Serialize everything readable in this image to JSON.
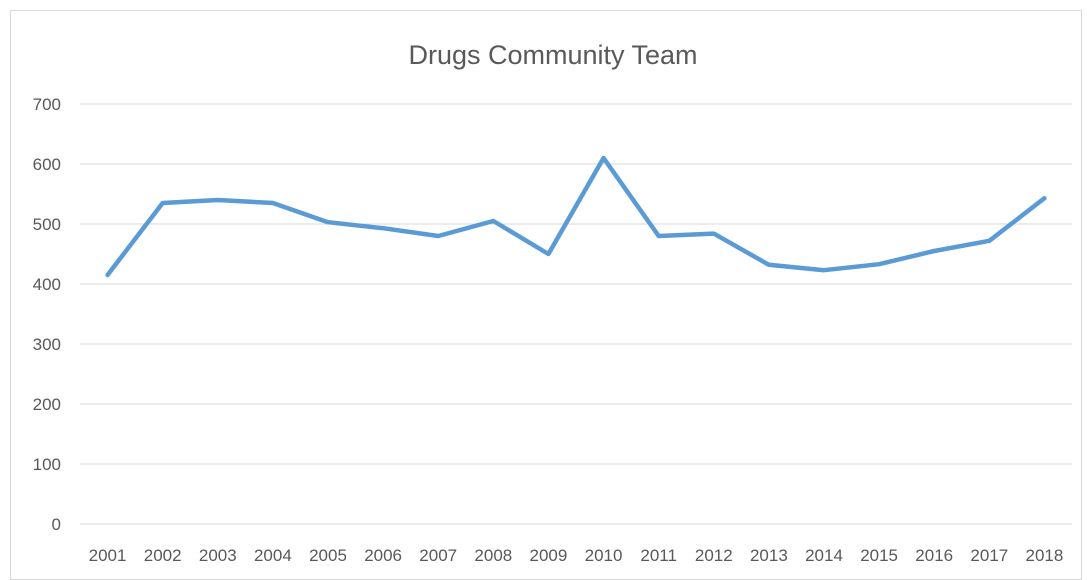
{
  "chart_data": {
    "type": "line",
    "title": "Drugs Community Team",
    "xlabel": "",
    "ylabel": "",
    "categories": [
      "2001",
      "2002",
      "2003",
      "2004",
      "2005",
      "2006",
      "2007",
      "2008",
      "2009",
      "2010",
      "2011",
      "2012",
      "2013",
      "2014",
      "2015",
      "2016",
      "2017",
      "2018"
    ],
    "series": [
      {
        "values": [
          415,
          535,
          540,
          535,
          503,
          493,
          480,
          505,
          450,
          610,
          480,
          484,
          432,
          423,
          433,
          455,
          472,
          543
        ],
        "color": "#5b9bd5"
      }
    ],
    "ylim": [
      0,
      700
    ],
    "yticks": [
      "0",
      "100",
      "200",
      "300",
      "400",
      "500",
      "600",
      "700"
    ],
    "grid": true,
    "legend": "none"
  }
}
